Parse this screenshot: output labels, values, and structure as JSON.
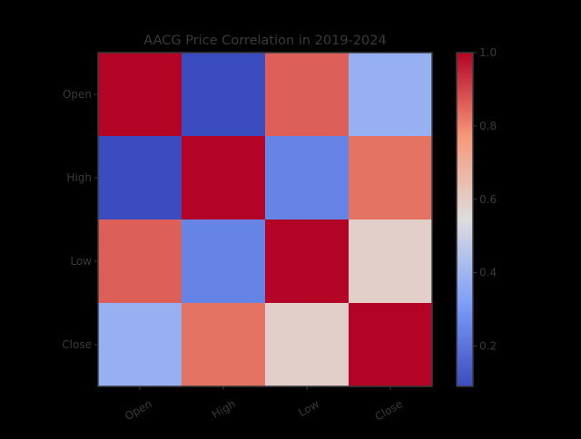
{
  "chart_data": {
    "type": "heatmap",
    "title": "AACG Price Correlation in 2019-2024",
    "x_categories": [
      "Open",
      "High",
      "Low",
      "Close"
    ],
    "y_categories": [
      "Open",
      "High",
      "Low",
      "Close"
    ],
    "values": [
      [
        1.0,
        0.09,
        0.86,
        0.38
      ],
      [
        0.09,
        1.0,
        0.24,
        0.83
      ],
      [
        0.86,
        0.24,
        1.0,
        0.59
      ],
      [
        0.38,
        0.83,
        0.59,
        1.0
      ]
    ],
    "colormap": "coolwarm",
    "colorbar": {
      "range": [
        0.09,
        1.0
      ],
      "ticks": [
        0.2,
        0.4,
        0.6,
        0.8,
        1.0
      ],
      "tick_labels": [
        "0.2",
        "0.4",
        "0.6",
        "0.8",
        "1.0"
      ]
    },
    "colors": {
      "background": "#000000",
      "text": "#3a3a3a",
      "frame": "#3a3a3a"
    }
  }
}
